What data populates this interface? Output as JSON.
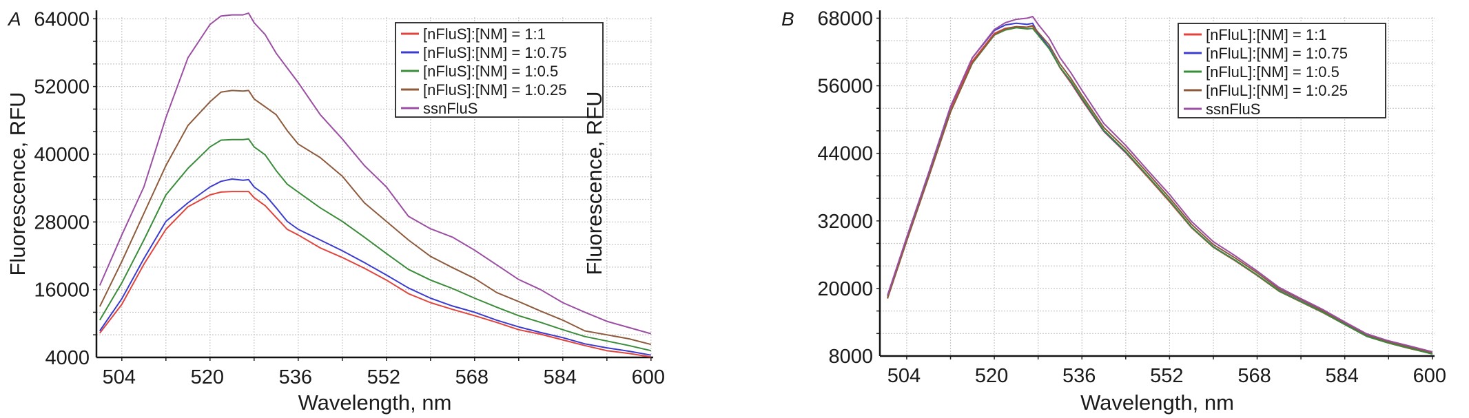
{
  "chart_data": [
    {
      "type": "line",
      "panel_label": "A",
      "title": "",
      "xlabel": "Wavelength, nm",
      "ylabel": "Fluorescence, RFU",
      "xlim": [
        499.4,
        600.4
      ],
      "ylim": [
        4000,
        65500
      ],
      "x_ticks": [
        504,
        520,
        536,
        552,
        568,
        584,
        600
      ],
      "y_ticks": [
        4000,
        16000,
        28000,
        40000,
        52000,
        64000
      ],
      "grid": true,
      "legend_position": "top-right",
      "x": [
        500,
        504,
        508,
        512,
        516,
        520,
        522,
        524,
        526,
        527,
        528,
        530,
        532,
        534,
        536,
        540,
        544,
        548,
        552,
        556,
        560,
        564,
        568,
        572,
        576,
        580,
        584,
        588,
        592,
        596,
        600
      ],
      "series": [
        {
          "name": "[nFluS]:[NM] = 1:1",
          "color": "#e0443c",
          "values": [
            8300,
            13400,
            20500,
            26700,
            30700,
            32800,
            33300,
            33400,
            33400,
            33400,
            32300,
            30900,
            28800,
            26700,
            25700,
            23400,
            21700,
            19800,
            17700,
            15300,
            13700,
            12500,
            11400,
            10200,
            8900,
            8100,
            7100,
            6100,
            5200,
            4700,
            4100
          ]
        },
        {
          "name": "[nFluS]:[NM] = 1:0.75",
          "color": "#3b3bd0",
          "values": [
            8700,
            14400,
            21500,
            28100,
            31400,
            34200,
            35200,
            35600,
            35400,
            35500,
            34200,
            32800,
            30500,
            28100,
            26700,
            24800,
            22900,
            20800,
            18600,
            16300,
            14500,
            13100,
            12000,
            10600,
            9400,
            8400,
            7500,
            6400,
            5700,
            5100,
            4400
          ]
        },
        {
          "name": "[nFluS]:[NM] = 1:0.5",
          "color": "#3a8c3a",
          "values": [
            10600,
            17200,
            24800,
            32800,
            37500,
            41300,
            42500,
            42600,
            42600,
            42700,
            41300,
            39900,
            37100,
            34700,
            33300,
            30500,
            28100,
            25300,
            22400,
            19600,
            17700,
            16200,
            14500,
            12900,
            11400,
            10200,
            8900,
            7700,
            6900,
            6100,
            5200
          ]
        },
        {
          "name": "[nFluS]:[NM] = 1:0.25",
          "color": "#8d5a3b",
          "values": [
            13000,
            21000,
            29500,
            38000,
            45100,
            49300,
            51000,
            51300,
            51200,
            51300,
            49800,
            48400,
            47000,
            44200,
            41800,
            39400,
            36100,
            31400,
            28100,
            24800,
            21900,
            19900,
            18000,
            15500,
            13900,
            12200,
            10600,
            8700,
            8000,
            7300,
            6300
          ]
        },
        {
          "name": "ssnFluS",
          "color": "#9b4fa3",
          "values": [
            16750,
            25700,
            34200,
            46500,
            57100,
            63000,
            64500,
            64700,
            64700,
            65000,
            63300,
            61200,
            57900,
            55300,
            52700,
            47000,
            42700,
            38000,
            34200,
            29000,
            26800,
            25300,
            23000,
            20400,
            17800,
            16000,
            13700,
            12000,
            10400,
            9300,
            8200
          ]
        }
      ]
    },
    {
      "type": "line",
      "panel_label": "B",
      "title": "",
      "xlabel": "Wavelength, nm",
      "ylabel": "Fluorescence, RFU",
      "xlim": [
        499.1,
        600.4
      ],
      "ylim": [
        8000,
        69400
      ],
      "x_ticks": [
        504,
        520,
        536,
        552,
        568,
        584,
        600
      ],
      "y_ticks": [
        8000,
        20000,
        32000,
        44000,
        56000,
        68000
      ],
      "grid": true,
      "legend_position": "top-right",
      "x": [
        500.5,
        504,
        508,
        512,
        516,
        520,
        522,
        524,
        526,
        527,
        528,
        530,
        532,
        534,
        536,
        540,
        544,
        548,
        552,
        556,
        560,
        564,
        568,
        572,
        576,
        580,
        584,
        588,
        592,
        596,
        600
      ],
      "series": [
        {
          "name": "[nFluL]:[NM] = 1:1",
          "color": "#e0443c",
          "values": [
            18300,
            28600,
            40300,
            52000,
            60400,
            65300,
            66200,
            66500,
            66400,
            66600,
            65100,
            62700,
            59200,
            56500,
            53500,
            47900,
            44100,
            39800,
            35400,
            30800,
            27300,
            24900,
            22300,
            19500,
            17600,
            15700,
            13600,
            11500,
            10300,
            9300,
            8400
          ]
        },
        {
          "name": "[nFluL]:[NM] = 1:0.75",
          "color": "#3b3bd0",
          "values": [
            18700,
            29000,
            40500,
            52300,
            61000,
            65800,
            66800,
            67100,
            66900,
            67100,
            65300,
            62800,
            59300,
            56700,
            53700,
            48000,
            44200,
            40000,
            35600,
            30900,
            27400,
            25000,
            22400,
            19600,
            17700,
            15800,
            13650,
            11550,
            10350,
            9400,
            8450
          ]
        },
        {
          "name": "[nFluL]:[NM] = 1:0.5",
          "color": "#3a8c3a",
          "values": [
            18400,
            28500,
            39800,
            51400,
            60000,
            65000,
            65900,
            66300,
            66100,
            66200,
            65000,
            62600,
            59300,
            56800,
            53800,
            48100,
            44300,
            40000,
            35600,
            30900,
            27350,
            25000,
            22400,
            19550,
            17650,
            15750,
            13600,
            11500,
            10300,
            9350,
            8350
          ]
        },
        {
          "name": "[nFluL]:[NM] = 1:0.25",
          "color": "#8d5a3b",
          "values": [
            18200,
            28400,
            39700,
            51300,
            60100,
            65100,
            66100,
            66500,
            66400,
            66700,
            65500,
            63300,
            59900,
            57300,
            54300,
            48600,
            44800,
            40500,
            36100,
            31400,
            27800,
            25400,
            22800,
            19900,
            18000,
            16050,
            13900,
            11800,
            10550,
            9600,
            8600
          ]
        },
        {
          "name": "ssnFluS",
          "color": "#9b4fa3",
          "values": [
            18800,
            29100,
            40500,
            52300,
            61000,
            66000,
            67200,
            67800,
            68000,
            68300,
            66900,
            64500,
            61000,
            58300,
            55200,
            49300,
            45400,
            41000,
            36700,
            31900,
            28300,
            25800,
            23100,
            20200,
            18200,
            16250,
            14050,
            11950,
            10700,
            9750,
            8750
          ]
        }
      ]
    }
  ]
}
